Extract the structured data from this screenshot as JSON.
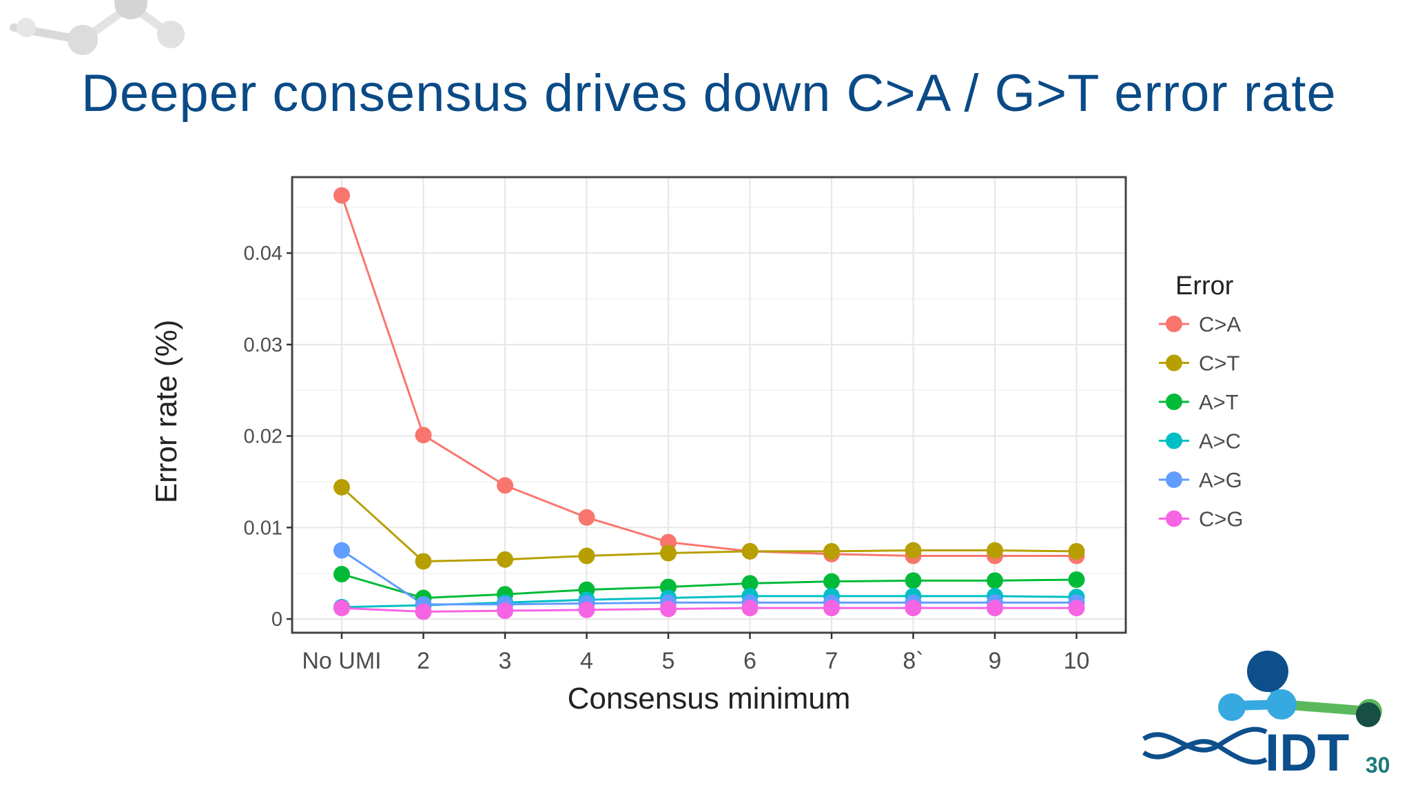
{
  "slide": {
    "title": "Deeper consensus drives down C>A / G>T error rate",
    "page_number": "30",
    "logo_text": "IDT"
  },
  "colors": {
    "title": "#0a4a86",
    "panel_border": "#444444",
    "grid": "#e6e6e6",
    "logo_dark": "#0d4f8b",
    "logo_light": "#36a9e1",
    "logo_green": "#5cb85c",
    "logo_teal": "#174f45"
  },
  "chart_data": {
    "type": "line",
    "title": "",
    "xlabel": "Consensus minimum",
    "ylabel": "Error rate (%)",
    "categories": [
      "No UMI",
      "2",
      "3",
      "4",
      "5",
      "6",
      "7",
      "8`",
      "9",
      "10"
    ],
    "ylim": [
      -0.0015,
      0.0483
    ],
    "yticks": [
      0,
      0.01,
      0.02,
      0.03,
      0.04
    ],
    "ytick_labels": [
      "0",
      "0.01",
      "0.02",
      "0.03",
      "0.04"
    ],
    "grid": true,
    "legend": {
      "title": "Error",
      "position": "right"
    },
    "series": [
      {
        "name": "C>A",
        "color": "#F8766D",
        "values": [
          0.0463,
          0.0201,
          0.0146,
          0.0111,
          0.0084,
          0.0074,
          0.0071,
          0.0069,
          0.0069,
          0.0069
        ]
      },
      {
        "name": "C>T",
        "color": "#B79F00",
        "values": [
          0.0144,
          0.0063,
          0.0065,
          0.0069,
          0.0072,
          0.0074,
          0.0074,
          0.0075,
          0.0075,
          0.0074
        ]
      },
      {
        "name": "A>T",
        "color": "#00BA38",
        "values": [
          0.0049,
          0.0023,
          0.0027,
          0.0032,
          0.0035,
          0.0039,
          0.0041,
          0.0042,
          0.0042,
          0.0043
        ]
      },
      {
        "name": "A>C",
        "color": "#00BFC4",
        "values": [
          0.0013,
          0.0015,
          0.0018,
          0.0021,
          0.0023,
          0.0025,
          0.0025,
          0.0025,
          0.0025,
          0.0024
        ]
      },
      {
        "name": "A>G",
        "color": "#619CFF",
        "values": [
          0.0075,
          0.0016,
          0.0016,
          0.0017,
          0.0018,
          0.0018,
          0.0018,
          0.0018,
          0.0018,
          0.0018
        ]
      },
      {
        "name": "C>G",
        "color": "#F564E3",
        "values": [
          0.0012,
          0.0008,
          0.0009,
          0.001,
          0.0011,
          0.0012,
          0.0012,
          0.0012,
          0.0012,
          0.0012
        ]
      }
    ]
  }
}
